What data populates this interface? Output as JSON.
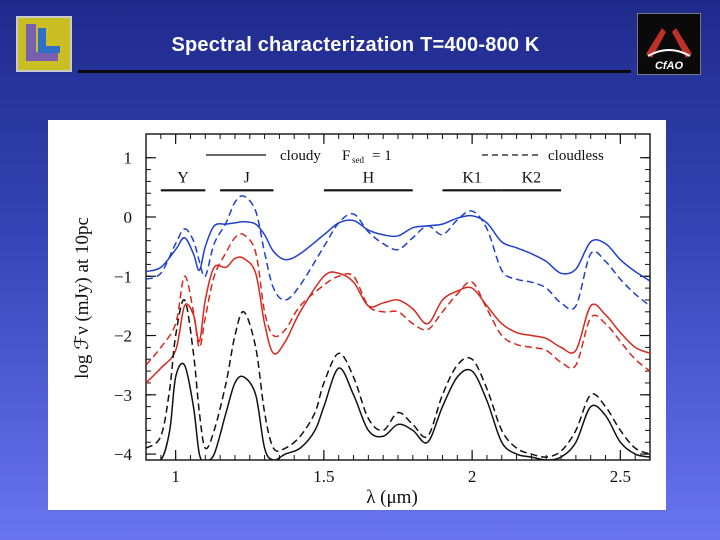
{
  "slide": {
    "title": "Spectral characterization T=400-800 K",
    "logos": [
      {
        "name": "llnl-logo",
        "letters": "LL"
      },
      {
        "name": "cfao-logo",
        "letters": "CfAO"
      }
    ]
  },
  "chart_data": {
    "type": "line",
    "xlabel": "λ (μm)",
    "ylabel": "log ℱν (mJy) at 10pc",
    "xlim": [
      0.9,
      2.6
    ],
    "ylim": [
      -4.1,
      1.4
    ],
    "x_ticks": [
      1,
      1.5,
      2,
      2.5
    ],
    "x_tick_labels": [
      "1",
      "1.5",
      "2",
      "2.5"
    ],
    "y_ticks": [
      1,
      0,
      -1,
      -2,
      -3,
      -4
    ],
    "y_tick_labels": [
      "1",
      "0",
      "−1",
      "−2",
      "−3",
      "−4"
    ],
    "legend": [
      {
        "label": "cloudy",
        "style": "solid",
        "sed_label": "F",
        "sed_sub": "sed",
        "sed_eq": "= 1"
      },
      {
        "label": "cloudless",
        "style": "dashed"
      }
    ],
    "bands": [
      {
        "name": "Y",
        "x": [
          0.95,
          1.1
        ]
      },
      {
        "name": "J",
        "x": [
          1.15,
          1.33
        ]
      },
      {
        "name": "H",
        "x": [
          1.5,
          1.8
        ]
      },
      {
        "name": "K1",
        "x": [
          1.9,
          2.1
        ]
      },
      {
        "name": "K2",
        "x": [
          2.1,
          2.3
        ]
      }
    ],
    "series": [
      {
        "color": "#1f3fd0",
        "style": "solid",
        "x": [
          0.9,
          0.95,
          1.0,
          1.03,
          1.06,
          1.08,
          1.1,
          1.13,
          1.17,
          1.2,
          1.23,
          1.27,
          1.3,
          1.33,
          1.37,
          1.42,
          1.5,
          1.55,
          1.6,
          1.65,
          1.7,
          1.75,
          1.8,
          1.85,
          1.9,
          1.95,
          2.0,
          2.05,
          2.1,
          2.15,
          2.2,
          2.25,
          2.3,
          2.35,
          2.4,
          2.45,
          2.5,
          2.55,
          2.6
        ],
        "y": [
          -0.92,
          -0.85,
          -0.55,
          -0.35,
          -0.62,
          -0.9,
          -0.5,
          -0.15,
          -0.12,
          -0.1,
          -0.08,
          -0.12,
          -0.3,
          -0.58,
          -0.72,
          -0.62,
          -0.3,
          -0.1,
          -0.06,
          -0.22,
          -0.3,
          -0.32,
          -0.18,
          -0.15,
          -0.12,
          -0.02,
          0.02,
          -0.1,
          -0.42,
          -0.52,
          -0.62,
          -0.75,
          -0.95,
          -0.88,
          -0.42,
          -0.45,
          -0.72,
          -0.92,
          -1.08
        ]
      },
      {
        "color": "#1f3fd0",
        "style": "dashed",
        "x": [
          0.9,
          0.95,
          1.0,
          1.03,
          1.06,
          1.08,
          1.1,
          1.13,
          1.17,
          1.2,
          1.23,
          1.27,
          1.3,
          1.33,
          1.37,
          1.42,
          1.5,
          1.55,
          1.6,
          1.65,
          1.7,
          1.75,
          1.8,
          1.85,
          1.9,
          1.95,
          2.0,
          2.05,
          2.1,
          2.15,
          2.2,
          2.25,
          2.3,
          2.35,
          2.4,
          2.45,
          2.5,
          2.55,
          2.6
        ],
        "y": [
          -1.05,
          -0.95,
          -0.45,
          -0.2,
          -0.4,
          -0.75,
          -1.0,
          -0.45,
          -0.1,
          0.25,
          0.35,
          0.1,
          -0.6,
          -1.2,
          -1.4,
          -1.15,
          -0.5,
          -0.1,
          0.05,
          -0.25,
          -0.45,
          -0.55,
          -0.35,
          -0.15,
          -0.3,
          -0.05,
          0.1,
          -0.2,
          -0.9,
          -1.05,
          -1.1,
          -1.2,
          -1.45,
          -1.5,
          -0.62,
          -0.75,
          -1.05,
          -1.3,
          -1.5
        ]
      },
      {
        "color": "#d8281e",
        "style": "solid",
        "x": [
          0.9,
          0.95,
          1.0,
          1.03,
          1.06,
          1.08,
          1.1,
          1.13,
          1.17,
          1.2,
          1.23,
          1.27,
          1.3,
          1.33,
          1.37,
          1.42,
          1.5,
          1.55,
          1.6,
          1.65,
          1.7,
          1.75,
          1.8,
          1.85,
          1.9,
          1.95,
          2.0,
          2.05,
          2.1,
          2.15,
          2.2,
          2.25,
          2.3,
          2.35,
          2.4,
          2.45,
          2.5,
          2.55,
          2.6
        ],
        "y": [
          -2.8,
          -2.55,
          -2.25,
          -1.5,
          -1.65,
          -2.1,
          -1.4,
          -0.85,
          -0.85,
          -0.7,
          -0.7,
          -0.95,
          -1.8,
          -2.3,
          -2.1,
          -1.6,
          -1.0,
          -0.95,
          -1.1,
          -1.5,
          -1.45,
          -1.4,
          -1.55,
          -1.8,
          -1.4,
          -1.25,
          -1.2,
          -1.5,
          -1.8,
          -1.95,
          -2.0,
          -2.05,
          -2.2,
          -2.25,
          -1.5,
          -1.65,
          -1.95,
          -2.2,
          -2.3
        ]
      },
      {
        "color": "#d8281e",
        "style": "dashed",
        "x": [
          0.9,
          0.95,
          1.0,
          1.03,
          1.06,
          1.08,
          1.1,
          1.13,
          1.17,
          1.2,
          1.23,
          1.27,
          1.3,
          1.33,
          1.37,
          1.42,
          1.5,
          1.55,
          1.6,
          1.65,
          1.7,
          1.75,
          1.8,
          1.85,
          1.9,
          1.95,
          2.0,
          2.05,
          2.1,
          2.15,
          2.2,
          2.25,
          2.3,
          2.35,
          2.4,
          2.45,
          2.5,
          2.55,
          2.6
        ],
        "y": [
          -2.5,
          -2.2,
          -1.8,
          -1.0,
          -1.6,
          -2.2,
          -1.7,
          -1.0,
          -0.6,
          -0.35,
          -0.3,
          -0.6,
          -1.6,
          -2.0,
          -1.9,
          -1.5,
          -1.15,
          -1.0,
          -1.0,
          -1.5,
          -1.6,
          -1.6,
          -1.8,
          -1.9,
          -1.6,
          -1.3,
          -1.1,
          -1.55,
          -2.0,
          -2.15,
          -2.2,
          -2.25,
          -2.45,
          -2.5,
          -1.7,
          -1.8,
          -2.1,
          -2.4,
          -2.6
        ]
      },
      {
        "color": "#111111",
        "style": "solid",
        "x": [
          0.9,
          0.95,
          0.98,
          1.0,
          1.03,
          1.06,
          1.08,
          1.1,
          1.13,
          1.17,
          1.2,
          1.23,
          1.27,
          1.3,
          1.33,
          1.37,
          1.42,
          1.47,
          1.5,
          1.55,
          1.6,
          1.65,
          1.7,
          1.75,
          1.8,
          1.85,
          1.9,
          1.95,
          2.0,
          2.05,
          2.1,
          2.15,
          2.2,
          2.25,
          2.3,
          2.35,
          2.4,
          2.45,
          2.5,
          2.55,
          2.6
        ],
        "y": [
          -4.1,
          -4.1,
          -3.6,
          -2.7,
          -2.5,
          -3.2,
          -4.0,
          -4.1,
          -4.0,
          -3.3,
          -2.8,
          -2.7,
          -3.0,
          -3.9,
          -4.1,
          -4.0,
          -3.9,
          -3.6,
          -3.2,
          -2.55,
          -3.0,
          -3.6,
          -3.7,
          -3.5,
          -3.6,
          -3.8,
          -3.2,
          -2.7,
          -2.6,
          -3.1,
          -3.8,
          -4.0,
          -4.05,
          -4.1,
          -4.05,
          -3.8,
          -3.2,
          -3.35,
          -3.8,
          -4.0,
          -4.05
        ]
      },
      {
        "color": "#111111",
        "style": "dashed",
        "x": [
          0.9,
          0.95,
          0.98,
          1.0,
          1.03,
          1.06,
          1.08,
          1.1,
          1.13,
          1.17,
          1.2,
          1.23,
          1.27,
          1.3,
          1.33,
          1.37,
          1.42,
          1.47,
          1.5,
          1.55,
          1.6,
          1.65,
          1.7,
          1.75,
          1.8,
          1.85,
          1.9,
          1.95,
          2.0,
          2.05,
          2.1,
          2.15,
          2.2,
          2.25,
          2.3,
          2.35,
          2.4,
          2.45,
          2.5,
          2.55,
          2.6
        ],
        "y": [
          -3.9,
          -3.7,
          -2.9,
          -2.0,
          -1.4,
          -2.3,
          -3.3,
          -3.9,
          -3.6,
          -2.8,
          -2.0,
          -1.6,
          -2.2,
          -3.3,
          -3.9,
          -3.9,
          -3.7,
          -3.3,
          -2.8,
          -2.3,
          -2.7,
          -3.4,
          -3.6,
          -3.3,
          -3.5,
          -3.7,
          -3.0,
          -2.5,
          -2.4,
          -2.9,
          -3.6,
          -3.9,
          -4.0,
          -4.05,
          -3.95,
          -3.6,
          -3.0,
          -3.2,
          -3.6,
          -3.9,
          -4.0
        ]
      }
    ]
  }
}
